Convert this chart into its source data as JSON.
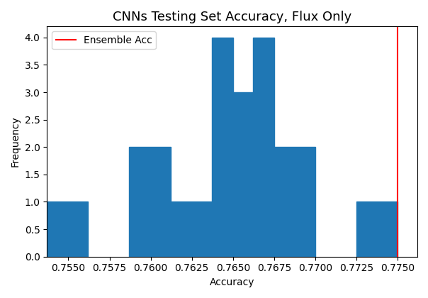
{
  "title": "CNNs Testing Set Accuracy, Flux Only",
  "xlabel": "Accuracy",
  "ylabel": "Frequency",
  "bar_color": "#1f77b4",
  "ensemble_acc": 0.775,
  "ensemble_label": "Ensemble Acc",
  "ensemble_color": "red",
  "ensemble_linewidth": 1.5,
  "bin_edges": [
    0.7537,
    0.7562,
    0.7587,
    0.7612,
    0.7637,
    0.765,
    0.7662,
    0.7675,
    0.77,
    0.7725,
    0.775,
    0.7762
  ],
  "bar_heights": [
    1,
    0,
    2,
    1,
    4,
    3,
    4,
    2,
    0,
    1,
    0
  ],
  "ylim": [
    0,
    4.2
  ],
  "xlim": [
    0.7537,
    0.7762
  ],
  "xtick_positions": [
    0.755,
    0.7575,
    0.76,
    0.7625,
    0.765,
    0.7675,
    0.77,
    0.7725,
    0.775
  ],
  "xtick_labels": [
    "0.7550",
    "0.7575",
    "0.7600",
    "0.7625",
    "0.7650",
    "0.7675",
    "0.7700",
    "0.7725",
    "0.7750"
  ],
  "figsize": [
    6.04,
    4.2
  ],
  "dpi": 100
}
